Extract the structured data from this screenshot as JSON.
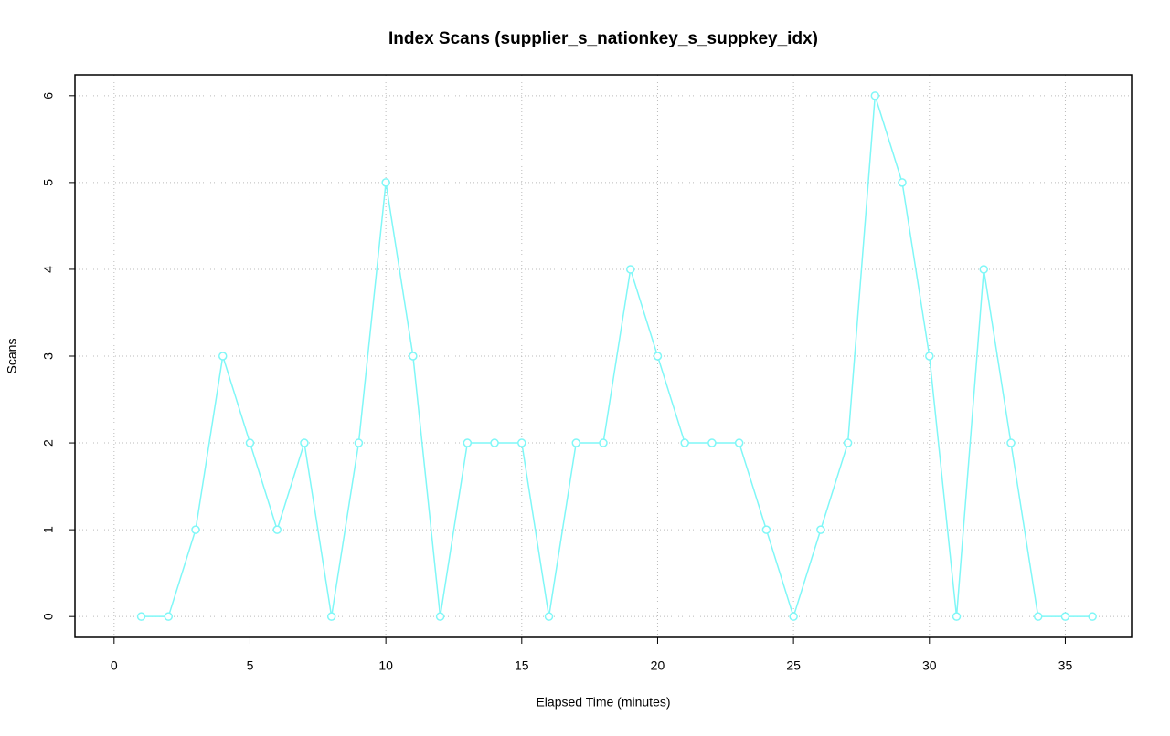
{
  "chart_data": {
    "type": "line",
    "title": "Index Scans (supplier_s_nationkey_s_suppkey_idx)",
    "x_label": "Elapsed Time (minutes)",
    "y_label": "Scans",
    "x": [
      1,
      2,
      3,
      4,
      5,
      6,
      7,
      8,
      9,
      10,
      11,
      12,
      13,
      14,
      15,
      16,
      17,
      18,
      19,
      20,
      21,
      22,
      23,
      24,
      25,
      26,
      27,
      28,
      29,
      30,
      31,
      32,
      33,
      34,
      35,
      36
    ],
    "series": [
      {
        "name": "Scans",
        "color": "#7ff7f7",
        "values": [
          0,
          0,
          1,
          3,
          2,
          1,
          2,
          0,
          2,
          5,
          3,
          0,
          2,
          2,
          2,
          0,
          2,
          2,
          4,
          3,
          2,
          2,
          2,
          1,
          0,
          1,
          2,
          6,
          5,
          3,
          0,
          4,
          2,
          0,
          0,
          0
        ]
      }
    ],
    "xlim": [
      -1.44,
      37.44
    ],
    "xticks": [
      0,
      5,
      10,
      15,
      20,
      25,
      30,
      35
    ],
    "ylim": [
      -0.24,
      6.24
    ],
    "yticks": [
      0,
      1,
      2,
      3,
      4,
      5,
      6
    ],
    "grid": true
  }
}
